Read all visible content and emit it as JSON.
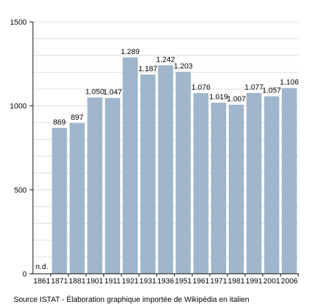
{
  "chart_data": {
    "type": "bar",
    "categories": [
      "1861",
      "1871",
      "1881",
      "1901",
      "1911",
      "1921",
      "1931",
      "1936",
      "1951",
      "1961",
      "1971",
      "1981",
      "1991",
      "2001",
      "2006"
    ],
    "values": [
      null,
      869,
      897,
      1050,
      1047,
      1289,
      1187,
      1242,
      1203,
      1076,
      1019,
      1007,
      1077,
      1057,
      1106
    ],
    "data_labels": [
      "n.d.",
      "869",
      "897",
      "1.050",
      "1.047",
      "1.289",
      "1.187",
      "1.242",
      "1.203",
      "1.076",
      "1.019",
      "1.007",
      "1.077",
      "1.057",
      "1.106"
    ],
    "title": "",
    "xlabel": "",
    "ylabel": "",
    "ylim": [
      0,
      1500
    ],
    "yticks": [
      0,
      500,
      1000,
      1500
    ],
    "ytick_labels": [
      "0",
      "500",
      "1000",
      "1500"
    ],
    "grid": true,
    "legend": "none",
    "colors": {
      "bar": "#9fb6cd",
      "grid": "#dddddd",
      "axis": "#000000"
    }
  },
  "source": "Source ISTAT - Élaboration graphique importée de Wikipédia en italien"
}
